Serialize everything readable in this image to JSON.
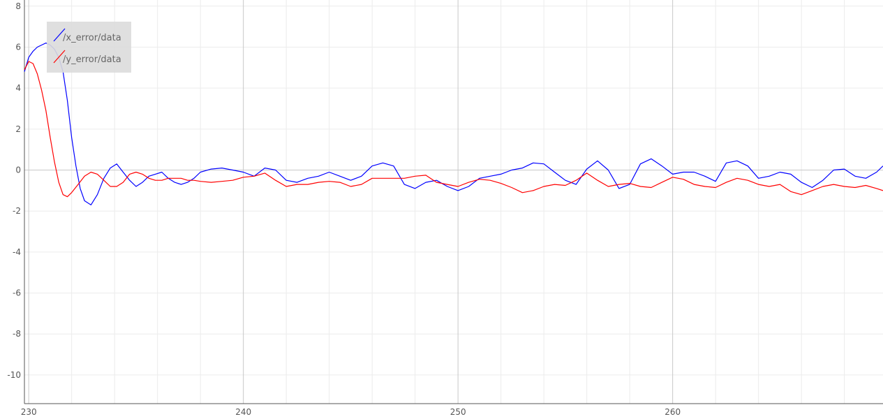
{
  "chart_data": {
    "type": "line",
    "title": "",
    "xlabel": "",
    "ylabel": "",
    "xlim": [
      229.8,
      269.8
    ],
    "ylim": [
      -11.4,
      8.3
    ],
    "x_ticks": [
      230,
      240,
      250,
      260
    ],
    "y_ticks": [
      8,
      6,
      4,
      2,
      0,
      -2,
      -4,
      -6,
      -8,
      -10
    ],
    "grid": true,
    "legend_position": "top-left",
    "series": [
      {
        "name": "/x_error/data",
        "color": "#0000ff",
        "x": [
          229.8,
          230.0,
          230.2,
          230.4,
          230.6,
          230.8,
          231.0,
          231.2,
          231.4,
          231.6,
          231.8,
          232.0,
          232.2,
          232.4,
          232.6,
          232.9,
          233.2,
          233.5,
          233.8,
          234.1,
          234.4,
          234.7,
          235.0,
          235.3,
          235.6,
          235.9,
          236.2,
          236.5,
          236.8,
          237.1,
          237.4,
          237.7,
          238.0,
          238.5,
          239.0,
          239.5,
          240.0,
          240.5,
          241.0,
          241.5,
          242.0,
          242.5,
          243.0,
          243.5,
          244.0,
          244.5,
          245.0,
          245.5,
          246.0,
          246.5,
          247.0,
          247.5,
          248.0,
          248.5,
          249.0,
          249.5,
          250.0,
          250.5,
          251.0,
          251.5,
          252.0,
          252.5,
          253.0,
          253.5,
          254.0,
          254.5,
          255.0,
          255.5,
          256.0,
          256.5,
          257.0,
          257.5,
          258.0,
          258.5,
          259.0,
          259.5,
          260.0,
          260.5,
          261.0,
          261.5,
          262.0,
          262.5,
          263.0,
          263.5,
          264.0,
          264.5,
          265.0,
          265.5,
          266.0,
          266.5,
          267.0,
          267.5,
          268.0,
          268.5,
          269.0,
          269.5,
          269.8
        ],
        "y": [
          4.8,
          5.5,
          5.8,
          6.0,
          6.1,
          6.2,
          6.1,
          5.9,
          5.5,
          4.8,
          3.4,
          1.6,
          0.2,
          -0.9,
          -1.5,
          -1.7,
          -1.2,
          -0.4,
          0.1,
          0.3,
          -0.1,
          -0.5,
          -0.8,
          -0.6,
          -0.3,
          -0.2,
          -0.1,
          -0.4,
          -0.6,
          -0.7,
          -0.6,
          -0.4,
          -0.1,
          0.05,
          0.1,
          0.0,
          -0.1,
          -0.3,
          0.1,
          0.0,
          -0.5,
          -0.6,
          -0.4,
          -0.3,
          -0.1,
          -0.3,
          -0.5,
          -0.3,
          0.2,
          0.35,
          0.2,
          -0.7,
          -0.9,
          -0.6,
          -0.5,
          -0.8,
          -1.0,
          -0.8,
          -0.4,
          -0.3,
          -0.2,
          0.0,
          0.1,
          0.35,
          0.3,
          -0.1,
          -0.5,
          -0.7,
          0.05,
          0.45,
          0.0,
          -0.9,
          -0.7,
          0.3,
          0.55,
          0.2,
          -0.2,
          -0.1,
          -0.1,
          -0.3,
          -0.55,
          0.35,
          0.45,
          0.2,
          -0.4,
          -0.3,
          -0.1,
          -0.2,
          -0.6,
          -0.85,
          -0.5,
          0.0,
          0.05,
          -0.3,
          -0.4,
          -0.1,
          0.2
        ]
      },
      {
        "name": "/y_error/data",
        "color": "#ff0000",
        "x": [
          229.8,
          230.0,
          230.2,
          230.4,
          230.6,
          230.8,
          231.0,
          231.2,
          231.4,
          231.6,
          231.8,
          232.0,
          232.3,
          232.6,
          232.9,
          233.2,
          233.5,
          233.8,
          234.1,
          234.4,
          234.7,
          235.0,
          235.3,
          235.6,
          235.9,
          236.2,
          236.5,
          236.8,
          237.1,
          237.4,
          237.7,
          238.0,
          238.5,
          239.0,
          239.5,
          240.0,
          240.5,
          241.0,
          241.5,
          242.0,
          242.5,
          243.0,
          243.5,
          244.0,
          244.5,
          245.0,
          245.5,
          246.0,
          246.5,
          247.0,
          247.5,
          248.0,
          248.5,
          249.0,
          249.5,
          250.0,
          250.5,
          251.0,
          251.5,
          252.0,
          252.5,
          253.0,
          253.5,
          254.0,
          254.5,
          255.0,
          255.5,
          256.0,
          256.5,
          257.0,
          257.5,
          258.0,
          258.5,
          259.0,
          259.5,
          260.0,
          260.5,
          261.0,
          261.5,
          262.0,
          262.5,
          263.0,
          263.5,
          264.0,
          264.5,
          265.0,
          265.5,
          266.0,
          266.5,
          267.0,
          267.5,
          268.0,
          268.5,
          269.0,
          269.5,
          269.8
        ],
        "y": [
          4.9,
          5.3,
          5.2,
          4.7,
          3.9,
          2.9,
          1.6,
          0.4,
          -0.6,
          -1.2,
          -1.3,
          -1.1,
          -0.7,
          -0.3,
          -0.1,
          -0.2,
          -0.5,
          -0.8,
          -0.8,
          -0.6,
          -0.2,
          -0.1,
          -0.2,
          -0.4,
          -0.5,
          -0.5,
          -0.4,
          -0.4,
          -0.4,
          -0.5,
          -0.5,
          -0.55,
          -0.6,
          -0.55,
          -0.5,
          -0.35,
          -0.3,
          -0.15,
          -0.5,
          -0.8,
          -0.7,
          -0.7,
          -0.6,
          -0.55,
          -0.6,
          -0.8,
          -0.7,
          -0.4,
          -0.4,
          -0.4,
          -0.4,
          -0.3,
          -0.25,
          -0.6,
          -0.7,
          -0.8,
          -0.6,
          -0.45,
          -0.5,
          -0.65,
          -0.85,
          -1.1,
          -1.0,
          -0.8,
          -0.7,
          -0.75,
          -0.5,
          -0.15,
          -0.5,
          -0.8,
          -0.7,
          -0.65,
          -0.8,
          -0.85,
          -0.6,
          -0.35,
          -0.45,
          -0.7,
          -0.8,
          -0.85,
          -0.6,
          -0.4,
          -0.5,
          -0.7,
          -0.8,
          -0.7,
          -1.05,
          -1.2,
          -1.0,
          -0.8,
          -0.7,
          -0.8,
          -0.85,
          -0.75,
          -0.9,
          -1.0
        ]
      }
    ]
  }
}
